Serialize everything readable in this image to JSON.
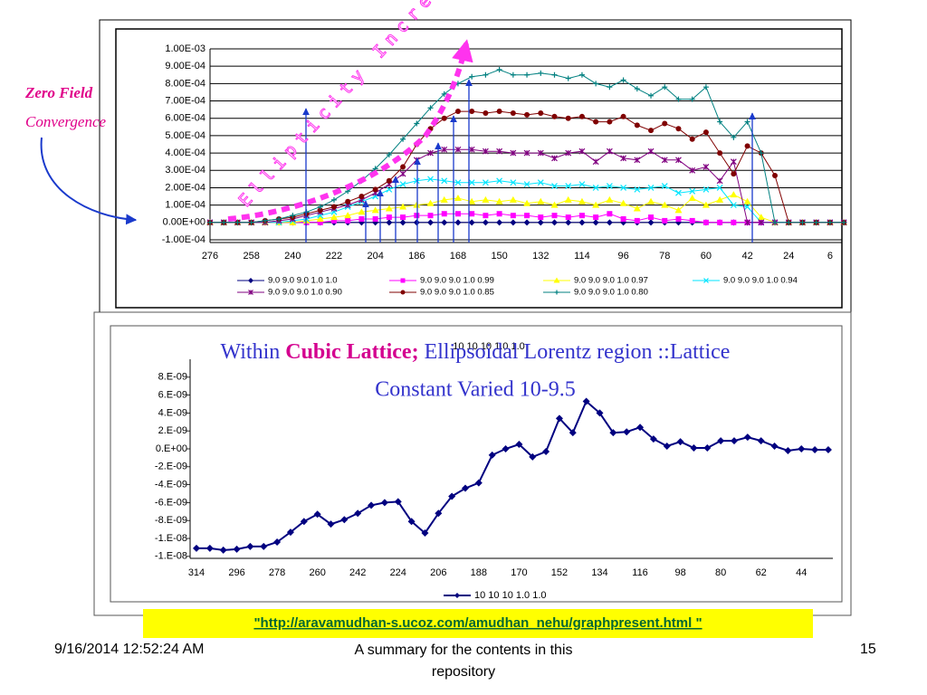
{
  "chart_data": [
    {
      "type": "line",
      "categories": [
        276,
        null,
        null,
        258,
        null,
        null,
        240,
        null,
        null,
        222,
        null,
        null,
        204,
        null,
        null,
        186,
        null,
        null,
        168,
        null,
        null,
        150,
        null,
        null,
        132,
        null,
        null,
        114,
        null,
        null,
        96,
        null,
        null,
        78,
        null,
        null,
        60,
        null,
        null,
        42,
        null,
        null,
        24,
        null,
        null,
        6,
        null
      ],
      "ylim": [
        -0.0001,
        0.001
      ],
      "yticks": [
        {
          "value": 0.001,
          "label": "1.00E-03"
        },
        {
          "value": 0.0009,
          "label": "9.00E-04"
        },
        {
          "value": 0.0008,
          "label": "8.00E-04"
        },
        {
          "value": 0.0007,
          "label": "7.00E-04"
        },
        {
          "value": 0.0006,
          "label": "6.00E-04"
        },
        {
          "value": 0.0005,
          "label": "5.00E-04"
        },
        {
          "value": 0.0004,
          "label": "4.00E-04"
        },
        {
          "value": 0.0003,
          "label": "3.00E-04"
        },
        {
          "value": 0.0002,
          "label": "2.00E-04"
        },
        {
          "value": 0.0001,
          "label": "1.00E-04"
        },
        {
          "value": 0,
          "label": "0.00E+00"
        },
        {
          "value": -0.0001,
          "label": "-1.00E-04"
        }
      ],
      "grid": true,
      "legend": "bottom",
      "series": [
        {
          "name": "9.0 9.0 9.0 1.0 1.0",
          "color": "#000080",
          "marker": "diamond",
          "values": [
            0,
            0,
            0,
            0,
            0,
            0,
            0,
            0,
            0,
            0,
            0,
            0,
            0,
            0,
            0,
            0,
            0,
            0,
            0,
            0,
            0,
            0,
            0,
            0,
            0,
            0,
            0,
            0,
            0,
            0,
            0,
            0,
            0,
            0,
            0,
            0,
            0,
            0,
            0,
            0,
            0,
            0,
            0,
            0,
            0,
            0,
            0
          ]
        },
        {
          "name": "9.0 9.0 9.0 1.0 0.99",
          "color": "#ff00ff",
          "marker": "square",
          "values": [
            0,
            0,
            0,
            0,
            0,
            0,
            0,
            0,
            0,
            1e-05,
            1e-05,
            2e-05,
            2e-05,
            3e-05,
            3e-05,
            4e-05,
            4e-05,
            5e-05,
            5e-05,
            5e-05,
            4e-05,
            5e-05,
            4e-05,
            4e-05,
            3e-05,
            4e-05,
            3e-05,
            4e-05,
            3e-05,
            5e-05,
            2e-05,
            1e-05,
            3e-05,
            1e-05,
            2e-05,
            1e-05,
            0,
            0,
            0,
            0,
            0,
            0,
            0,
            0,
            0,
            0,
            0
          ]
        },
        {
          "name": "9.0 9.0 9.0 1.0 0.97",
          "color": "#ffff00",
          "marker": "triangle",
          "values": [
            0,
            0,
            0,
            0,
            0,
            0,
            0,
            1e-05,
            2e-05,
            3e-05,
            4e-05,
            6e-05,
            7e-05,
            8e-05,
            9e-05,
            0.0001,
            0.00011,
            0.00013,
            0.00014,
            0.00012,
            0.00013,
            0.00012,
            0.00013,
            0.00011,
            0.00012,
            0.0001,
            0.00013,
            0.00012,
            0.0001,
            0.00013,
            0.00011,
            8e-05,
            0.00012,
            0.0001,
            7e-05,
            0.00014,
            0.0001,
            0.00013,
            0.00016,
            0.00012,
            3e-05,
            0,
            0,
            0,
            0,
            0,
            0
          ]
        },
        {
          "name": "9.0 9.0 9.0 1.0 0.94",
          "color": "#00e5ff",
          "marker": "x",
          "values": [
            0,
            0,
            0,
            0,
            0,
            0,
            1e-05,
            2e-05,
            4e-05,
            6e-05,
            9e-05,
            0.00012,
            0.00015,
            0.00019,
            0.00022,
            0.00024,
            0.00025,
            0.00024,
            0.00023,
            0.00023,
            0.00023,
            0.00024,
            0.00023,
            0.00022,
            0.00023,
            0.00021,
            0.00021,
            0.00022,
            0.0002,
            0.00021,
            0.0002,
            0.00019,
            0.0002,
            0.00021,
            0.00017,
            0.00018,
            0.00019,
            0.0002,
            0.0001,
            9e-05,
            0,
            0,
            0,
            0,
            0,
            0,
            0
          ]
        },
        {
          "name": "9.0 9.0 9.0 1.0 0.90",
          "color": "#800080",
          "marker": "asterisk",
          "values": [
            0,
            0,
            0,
            0,
            0,
            1e-05,
            2e-05,
            4e-05,
            6e-05,
            8e-05,
            0.0001,
            0.00013,
            0.00017,
            0.00022,
            0.00028,
            0.00036,
            0.0004,
            0.00042,
            0.00042,
            0.00042,
            0.00041,
            0.00041,
            0.0004,
            0.0004,
            0.0004,
            0.00037,
            0.0004,
            0.00041,
            0.00035,
            0.00041,
            0.00037,
            0.00036,
            0.00041,
            0.00036,
            0.00036,
            0.0003,
            0.00032,
            0.00024,
            0.00035,
            0,
            0,
            0,
            0,
            0,
            0,
            0,
            0
          ]
        },
        {
          "name": "9.0 9.0 9.0 1.0 0.85",
          "color": "#800000",
          "marker": "circle",
          "values": [
            0,
            0,
            0,
            0,
            1e-05,
            2e-05,
            3e-05,
            5e-05,
            7e-05,
            9e-05,
            0.00012,
            0.00015,
            0.00019,
            0.00024,
            0.00032,
            0.00045,
            0.00054,
            0.0006,
            0.00064,
            0.00064,
            0.00063,
            0.00064,
            0.00063,
            0.00062,
            0.00063,
            0.00061,
            0.0006,
            0.00061,
            0.00058,
            0.00058,
            0.00061,
            0.00056,
            0.00053,
            0.00057,
            0.00054,
            0.00048,
            0.00052,
            0.0004,
            0.00028,
            0.00044,
            0.0004,
            0.00027,
            0,
            0,
            0,
            0,
            0
          ]
        },
        {
          "name": "9.0 9.0 9.0 1.0 0.80",
          "color": "#008080",
          "marker": "plus",
          "values": [
            0,
            0,
            0,
            0,
            1e-05,
            2e-05,
            4e-05,
            6e-05,
            9e-05,
            0.00013,
            0.00018,
            0.00024,
            0.00031,
            0.00039,
            0.00048,
            0.00057,
            0.00066,
            0.00074,
            0.0008,
            0.00084,
            0.00085,
            0.00088,
            0.00085,
            0.00085,
            0.00086,
            0.00085,
            0.00083,
            0.00085,
            0.0008,
            0.00078,
            0.00082,
            0.00077,
            0.00073,
            0.00078,
            0.00071,
            0.00071,
            0.00078,
            0.00058,
            0.00049,
            0.00058,
            0.0004,
            0,
            0,
            0,
            0,
            0,
            0
          ]
        }
      ]
    },
    {
      "type": "line",
      "title": "10 10 10 1.0 1.0",
      "categories": [
        314,
        null,
        null,
        296,
        null,
        null,
        278,
        null,
        null,
        260,
        null,
        null,
        242,
        null,
        null,
        224,
        null,
        null,
        206,
        null,
        null,
        188,
        null,
        null,
        170,
        null,
        null,
        152,
        null,
        null,
        134,
        null,
        null,
        116,
        null,
        null,
        98,
        null,
        null,
        80,
        null,
        null,
        62,
        null,
        null,
        44,
        null,
        null
      ],
      "ylim": [
        -1.2e-08,
        1e-08
      ],
      "yticks": [
        {
          "value": 8e-09,
          "label": "8.E-09"
        },
        {
          "value": 6e-09,
          "label": "6.E-09"
        },
        {
          "value": 4e-09,
          "label": "4.E-09"
        },
        {
          "value": 2e-09,
          "label": "2.E-09"
        },
        {
          "value": 0,
          "label": "0.E+00"
        },
        {
          "value": -2e-09,
          "label": "-2.E-09"
        },
        {
          "value": -4e-09,
          "label": "-4.E-09"
        },
        {
          "value": -6e-09,
          "label": "-6.E-09"
        },
        {
          "value": -8e-09,
          "label": "-8.E-09"
        },
        {
          "value": -1e-08,
          "label": "-1.E-08"
        },
        {
          "value": -1.2e-08,
          "label": "-1.E-08"
        }
      ],
      "grid": false,
      "legend": "bottom",
      "series": [
        {
          "name": "10 10 10 1.0 1.0",
          "color": "#000080",
          "marker": "diamond",
          "values": [
            -1.11e-08,
            -1.11e-08,
            -1.13e-08,
            -1.12e-08,
            -1.09e-08,
            -1.09e-08,
            -1.04e-08,
            -9.3e-09,
            -8.1e-09,
            -7.3e-09,
            -8.4e-09,
            -7.9e-09,
            -7.2e-09,
            -6.3e-09,
            -6e-09,
            -5.9e-09,
            -8.1e-09,
            -9.4e-09,
            -7.2e-09,
            -5.3e-09,
            -4.4e-09,
            -3.8e-09,
            -7e-10,
            0,
            5e-10,
            -9e-10,
            -3e-10,
            3.4e-09,
            1.8e-09,
            5.3e-09,
            4e-09,
            1.8e-09,
            1.9e-09,
            2.4e-09,
            1.1e-09,
            3e-10,
            8e-10,
            1e-10,
            1e-10,
            9e-10,
            9e-10,
            1.3e-09,
            9e-10,
            3e-10,
            -2e-10,
            0,
            -1e-10,
            -1e-10
          ]
        }
      ]
    }
  ],
  "annotations": {
    "zero_field": "Zero Field",
    "convergence": "Convergence",
    "ellipticity": "Ellipticity Increases"
  },
  "overlay_title": [
    "Within ",
    "Cubic Lattice;",
    " Ellipsoidal Lorentz region ::Lattice",
    "Constant Varied 10-9.5"
  ],
  "link": "\"http://aravamudhan-s.ucoz.com/amudhan_nehu/graphpresent.html \"",
  "footer": {
    "date": "9/16/2014 12:52:24 AM",
    "text": "A summary for the contents in this repository",
    "page": "15"
  }
}
